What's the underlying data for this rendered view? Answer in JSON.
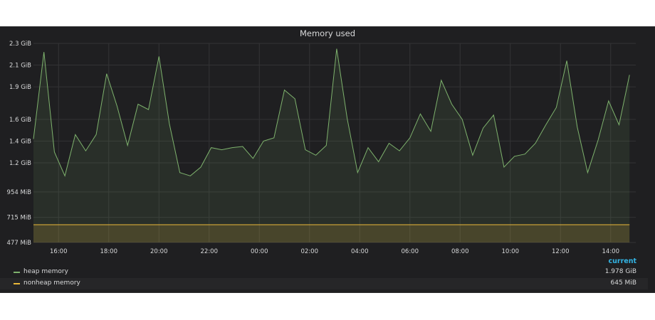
{
  "panel": {
    "title": "Memory used"
  },
  "legend": {
    "current_header": "current",
    "items": [
      {
        "label": "heap memory",
        "current": "1.978 GiB",
        "color": "#7eb26d"
      },
      {
        "label": "nonheap memory",
        "current": "645 MiB",
        "color": "#eab839"
      }
    ]
  },
  "chart_data": {
    "type": "area",
    "y_ticks": [
      {
        "label": "2.3 GiB",
        "value": 2.3
      },
      {
        "label": "2.1 GiB",
        "value": 2.1
      },
      {
        "label": "1.9 GiB",
        "value": 1.9
      },
      {
        "label": "1.6 GiB",
        "value": 1.6
      },
      {
        "label": "1.4 GiB",
        "value": 1.4
      },
      {
        "label": "1.2 GiB",
        "value": 1.2
      },
      {
        "label": "954 MiB",
        "value": 0.932
      },
      {
        "label": "715 MiB",
        "value": 0.698
      },
      {
        "label": "477 MiB",
        "value": 0.466
      }
    ],
    "x_ticks": [
      "16:00",
      "18:00",
      "20:00",
      "22:00",
      "00:00",
      "02:00",
      "04:00",
      "06:00",
      "08:00",
      "10:00",
      "12:00",
      "14:00"
    ],
    "x_start": "15:00",
    "x_end": "15:00",
    "grid": true,
    "legend_position": "bottom",
    "series": [
      {
        "name": "heap memory",
        "color": "#7eb26d",
        "unit": "GiB",
        "points": [
          [
            "15:00",
            1.42
          ],
          [
            "15:25",
            2.22
          ],
          [
            "15:50",
            1.3
          ],
          [
            "16:15",
            1.08
          ],
          [
            "16:40",
            1.46
          ],
          [
            "17:05",
            1.31
          ],
          [
            "17:30",
            1.46
          ],
          [
            "17:55",
            2.02
          ],
          [
            "18:20",
            1.72
          ],
          [
            "18:45",
            1.36
          ],
          [
            "19:10",
            1.74
          ],
          [
            "19:35",
            1.69
          ],
          [
            "20:00",
            2.18
          ],
          [
            "20:25",
            1.56
          ],
          [
            "20:50",
            1.11
          ],
          [
            "21:15",
            1.08
          ],
          [
            "21:40",
            1.16
          ],
          [
            "22:05",
            1.34
          ],
          [
            "22:30",
            1.32
          ],
          [
            "22:55",
            1.34
          ],
          [
            "23:20",
            1.35
          ],
          [
            "23:45",
            1.24
          ],
          [
            "00:10",
            1.4
          ],
          [
            "00:35",
            1.43
          ],
          [
            "01:00",
            1.87
          ],
          [
            "01:25",
            1.79
          ],
          [
            "01:50",
            1.32
          ],
          [
            "02:15",
            1.27
          ],
          [
            "02:40",
            1.36
          ],
          [
            "03:05",
            2.25
          ],
          [
            "03:30",
            1.61
          ],
          [
            "03:55",
            1.11
          ],
          [
            "04:20",
            1.34
          ],
          [
            "04:45",
            1.21
          ],
          [
            "05:10",
            1.38
          ],
          [
            "05:35",
            1.31
          ],
          [
            "06:00",
            1.43
          ],
          [
            "06:25",
            1.65
          ],
          [
            "06:50",
            1.49
          ],
          [
            "07:15",
            1.96
          ],
          [
            "07:40",
            1.74
          ],
          [
            "08:05",
            1.6
          ],
          [
            "08:30",
            1.27
          ],
          [
            "08:55",
            1.52
          ],
          [
            "09:20",
            1.64
          ],
          [
            "09:45",
            1.16
          ],
          [
            "10:10",
            1.26
          ],
          [
            "10:35",
            1.28
          ],
          [
            "11:00",
            1.38
          ],
          [
            "11:25",
            1.55
          ],
          [
            "11:50",
            1.71
          ],
          [
            "12:15",
            2.14
          ],
          [
            "12:40",
            1.53
          ],
          [
            "13:05",
            1.11
          ],
          [
            "13:30",
            1.41
          ],
          [
            "13:55",
            1.77
          ],
          [
            "14:20",
            1.55
          ],
          [
            "14:45",
            2.01
          ]
        ]
      },
      {
        "name": "nonheap memory",
        "color": "#eab839",
        "unit": "GiB",
        "points": [
          [
            "15:00",
            0.63
          ],
          [
            "14:45",
            0.63
          ]
        ]
      }
    ]
  }
}
